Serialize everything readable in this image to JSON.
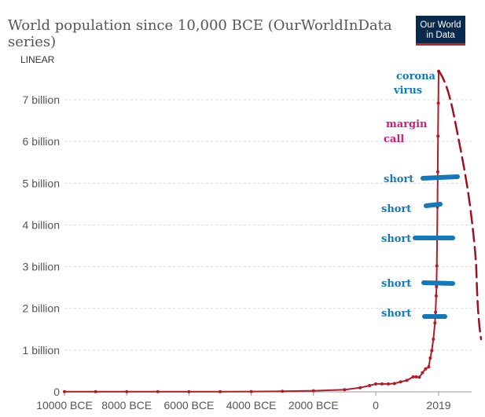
{
  "title": "World population since 10,000 BCE (OurWorldInData series)",
  "scale_label": "LINEAR",
  "logo": {
    "line1": "Our World",
    "line2": "in Data"
  },
  "colors": {
    "series": "#b01c2a",
    "annotation_blue": "#1479b8",
    "annotation_magenta": "#d4197c",
    "hand_drawn": "#a01020",
    "grid": "#d8d8d8"
  },
  "chart_data": {
    "type": "line",
    "title": "World population since 10,000 BCE (OurWorldInData series)",
    "xlabel": "",
    "ylabel": "",
    "xlim": [
      -10000,
      2019
    ],
    "ylim": [
      0,
      7700000000
    ],
    "x_ticks": [
      -10000,
      -8000,
      -6000,
      -4000,
      -2000,
      0,
      2019
    ],
    "x_tick_labels": [
      "10000 BCE",
      "8000 BCE",
      "6000 BCE",
      "4000 BCE",
      "2000 BCE",
      "0",
      "2019"
    ],
    "y_ticks": [
      0,
      1000000000,
      2000000000,
      3000000000,
      4000000000,
      5000000000,
      6000000000,
      7000000000
    ],
    "y_tick_labels": [
      "0",
      "1 billion",
      "2 billion",
      "3 billion",
      "4 billion",
      "5 billion",
      "6 billion",
      "7 billion"
    ],
    "grid": true,
    "series": [
      {
        "x": [
          -10000,
          -9000,
          -8000,
          -7000,
          -6000,
          -5000,
          -4000,
          -3000,
          -2000,
          -1000,
          -500,
          -200,
          0,
          200,
          400,
          600,
          800,
          1000,
          1200,
          1300,
          1400,
          1500,
          1600,
          1700,
          1750,
          1800,
          1850,
          1900,
          1920,
          1940,
          1950,
          1960,
          1970,
          1980,
          1990,
          2000,
          2010,
          2019
        ],
        "y": [
          4000000,
          4000000,
          5000000,
          5000000,
          5000000,
          5000000,
          7000000,
          14000000,
          27000000,
          50000000,
          100000000,
          150000000,
          190000000,
          190000000,
          190000000,
          200000000,
          240000000,
          275000000,
          360000000,
          360000000,
          350000000,
          460000000,
          550000000,
          600000000,
          810000000,
          990000000,
          1260000000,
          1650000000,
          1910000000,
          2300000000,
          2520000000,
          3020000000,
          3690000000,
          4430000000,
          5270000000,
          6130000000,
          6920000000,
          7680000000
        ]
      }
    ]
  },
  "annotations": {
    "corona_line1": "corona",
    "corona_line2": "virus",
    "margin_line1": "margin",
    "margin_line2": "call",
    "short_labels": [
      "short",
      "short",
      "short",
      "short",
      "short"
    ]
  }
}
